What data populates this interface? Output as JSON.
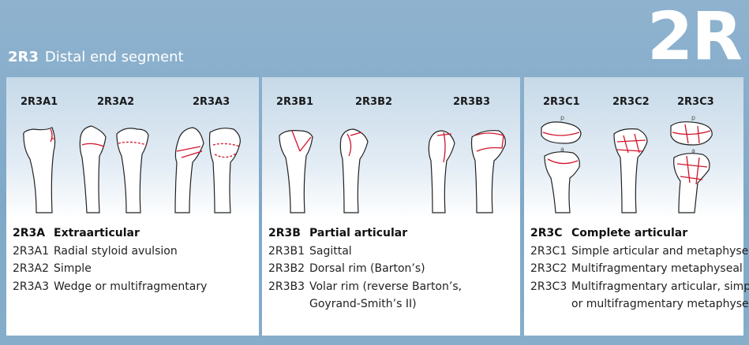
{
  "header": {
    "code": "2R3",
    "title": "Distal end segment",
    "big_code": "2R"
  },
  "groups": [
    {
      "subtypes": [
        "2R3A1",
        "2R3A2",
        "2R3A3"
      ],
      "code": "2R3A",
      "name": "Extraarticular",
      "items": [
        {
          "code": "2R3A1",
          "label": "Radial styloid avulsion"
        },
        {
          "code": "2R3A2",
          "label": "Simple"
        },
        {
          "code": "2R3A3",
          "label": "Wedge or multifragmentary"
        }
      ]
    },
    {
      "subtypes": [
        "2R3B1",
        "2R3B2",
        "2R3B3"
      ],
      "code": "2R3B",
      "name": "Partial articular",
      "items": [
        {
          "code": "2R3B1",
          "label": "Sagittal"
        },
        {
          "code": "2R3B2",
          "label": "Dorsal rim (Barton’s)"
        },
        {
          "code": "2R3B3",
          "label": "Volar rim (reverse Barton’s,",
          "cont": "Goyrand-Smith’s II)"
        }
      ]
    },
    {
      "subtypes": [
        "2R3C1",
        "2R3C2",
        "2R3C3"
      ],
      "code": "2R3C",
      "name": "Complete articular",
      "items": [
        {
          "code": "2R3C1",
          "label": "Simple articular and metaphyseal"
        },
        {
          "code": "2R3C2",
          "label": "Multifragmentary metaphyseal"
        },
        {
          "code": "2R3C3",
          "label": "Multifragmentary articular, simple",
          "cont": "or multifragmentary metaphyseal"
        }
      ]
    }
  ],
  "colors": {
    "background": "#7fa8c8",
    "fracture_line": "#d0142c",
    "bone_fill": "#ffffff",
    "bone_outline": "#222222"
  },
  "illustration_labels": {
    "top_view": "p",
    "bottom_view": "a"
  }
}
